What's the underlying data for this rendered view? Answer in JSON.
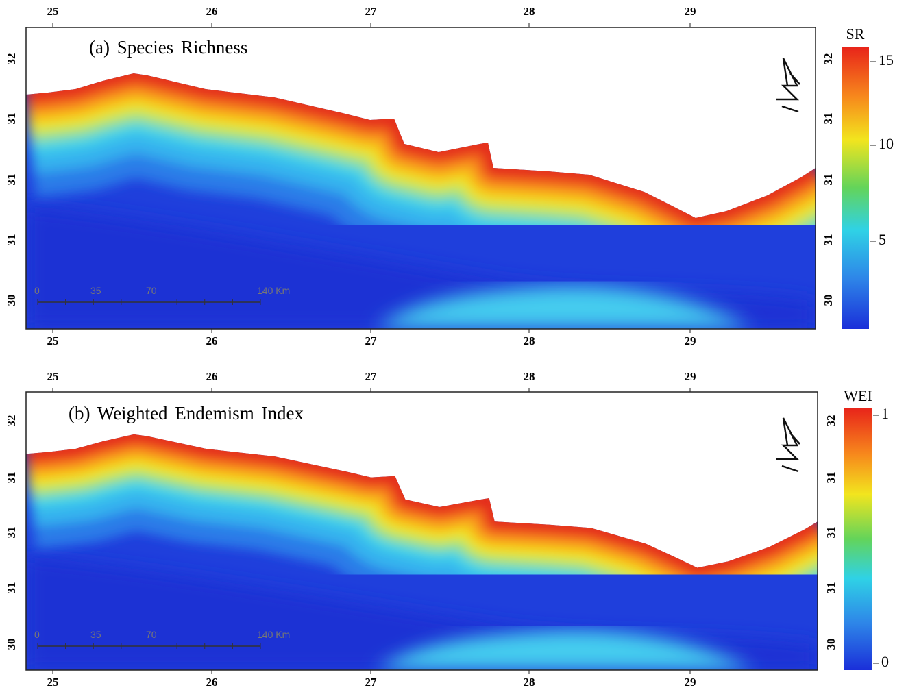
{
  "panels": [
    {
      "title": "(a) Species Richness",
      "lon_top": [
        25,
        26,
        27,
        28,
        29
      ],
      "lon_bottom": [
        25,
        26,
        27,
        28,
        29
      ],
      "lat_left": [
        32,
        31,
        31,
        31,
        30
      ],
      "lat_right": [
        32,
        31,
        31,
        31,
        30
      ],
      "legend": {
        "label": "SR",
        "ticks": [
          15,
          10,
          5
        ]
      },
      "scale_bar": [
        "0",
        "35",
        "70",
        "140 Km"
      ]
    },
    {
      "title": "(b) Weighted Endemism Index",
      "lon_top": [
        25,
        26,
        27,
        28,
        29
      ],
      "lon_bottom": [
        25,
        26,
        27,
        28,
        29
      ],
      "lat_left": [
        32,
        31,
        31,
        31,
        30
      ],
      "lat_right": [
        32,
        31,
        31,
        31,
        30
      ],
      "legend": {
        "label": "WEI",
        "ticks": [
          1,
          0
        ]
      },
      "scale_bar": [
        "0",
        "35",
        "70",
        "140 Km"
      ]
    }
  ]
}
